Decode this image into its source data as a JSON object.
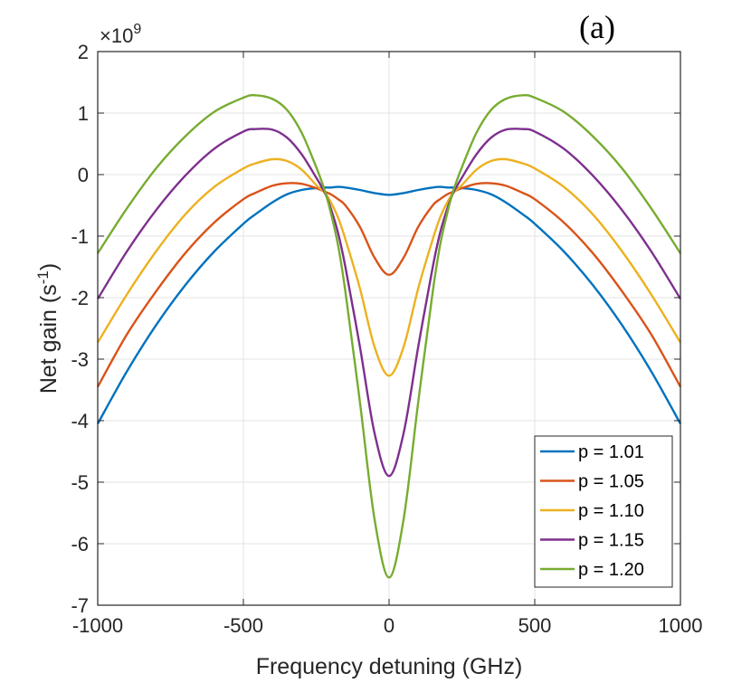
{
  "chart_data": {
    "type": "line",
    "panel_label": "(a)",
    "xlabel": "Frequency detuning (GHz)",
    "ylabel": "Net gain (s",
    "ylabel_sup": "-1",
    "ylabel_close": ")",
    "exponent_base": "×10",
    "exponent_power": "9",
    "xlim": [
      -1000,
      1000
    ],
    "ylim": [
      -7,
      2
    ],
    "xticks": [
      -1000,
      -500,
      0,
      500,
      1000
    ],
    "xtick_labels": [
      "-1000",
      "-500",
      "0",
      "500",
      "1000"
    ],
    "yticks": [
      -7,
      -6,
      -5,
      -4,
      -3,
      -2,
      -1,
      0,
      1,
      2
    ],
    "ytick_labels": [
      "-7",
      "-6",
      "-5",
      "-4",
      "-3",
      "-2",
      "-1",
      "0",
      "1",
      "2"
    ],
    "grid": true,
    "legend_position": "bottom-right",
    "x": [
      -1000,
      -900,
      -800,
      -700,
      -600,
      -500,
      -460,
      -400,
      -350,
      -300,
      -250,
      -220,
      -200,
      -175,
      -150,
      -100,
      -50,
      0,
      50,
      100,
      150,
      175,
      200,
      220,
      250,
      300,
      350,
      400,
      460,
      500,
      600,
      700,
      800,
      900,
      1000
    ],
    "series": [
      {
        "name": "p = 1.01",
        "color": "#0072BD",
        "values": [
          -4.05,
          -3.2,
          -2.45,
          -1.8,
          -1.25,
          -0.8,
          -0.65,
          -0.45,
          -0.32,
          -0.25,
          -0.22,
          -0.21,
          -0.21,
          -0.2,
          -0.21,
          -0.25,
          -0.3,
          -0.33,
          -0.3,
          -0.25,
          -0.21,
          -0.2,
          -0.21,
          -0.21,
          -0.22,
          -0.25,
          -0.32,
          -0.45,
          -0.65,
          -0.8,
          -1.25,
          -1.8,
          -2.45,
          -3.2,
          -4.05
        ]
      },
      {
        "name": "p = 1.05",
        "color": "#D95319",
        "values": [
          -3.45,
          -2.6,
          -1.9,
          -1.28,
          -0.78,
          -0.4,
          -0.3,
          -0.18,
          -0.14,
          -0.15,
          -0.22,
          -0.28,
          -0.32,
          -0.4,
          -0.5,
          -0.85,
          -1.35,
          -1.63,
          -1.35,
          -0.85,
          -0.5,
          -0.4,
          -0.32,
          -0.28,
          -0.22,
          -0.15,
          -0.14,
          -0.18,
          -0.3,
          -0.4,
          -0.78,
          -1.28,
          -1.9,
          -2.6,
          -3.45
        ]
      },
      {
        "name": "p = 1.10",
        "color": "#EDB120",
        "values": [
          -2.73,
          -1.95,
          -1.25,
          -0.65,
          -0.2,
          0.1,
          0.18,
          0.25,
          0.22,
          0.08,
          -0.17,
          -0.3,
          -0.45,
          -0.7,
          -1.05,
          -1.85,
          -2.8,
          -3.27,
          -2.8,
          -1.85,
          -1.05,
          -0.7,
          -0.45,
          -0.3,
          -0.17,
          0.08,
          0.22,
          0.25,
          0.18,
          0.1,
          -0.2,
          -0.65,
          -1.25,
          -1.95,
          -2.73
        ]
      },
      {
        "name": "p = 1.15",
        "color": "#7E2F8E",
        "values": [
          -2.02,
          -1.25,
          -0.58,
          -0.02,
          0.42,
          0.7,
          0.74,
          0.73,
          0.6,
          0.33,
          -0.05,
          -0.3,
          -0.55,
          -0.95,
          -1.5,
          -2.8,
          -4.2,
          -4.9,
          -4.2,
          -2.8,
          -1.5,
          -0.95,
          -0.55,
          -0.3,
          -0.05,
          0.33,
          0.6,
          0.73,
          0.74,
          0.7,
          0.42,
          -0.02,
          -0.58,
          -1.25,
          -2.02
        ]
      },
      {
        "name": "p = 1.20",
        "color": "#77AC30",
        "values": [
          -1.28,
          -0.55,
          0.1,
          0.62,
          1.02,
          1.25,
          1.29,
          1.23,
          1.05,
          0.68,
          0.12,
          -0.27,
          -0.62,
          -1.15,
          -1.9,
          -3.7,
          -5.6,
          -6.55,
          -5.6,
          -3.7,
          -1.9,
          -1.15,
          -0.62,
          -0.27,
          0.12,
          0.68,
          1.05,
          1.23,
          1.29,
          1.25,
          1.02,
          0.62,
          0.1,
          -0.55,
          -1.28
        ]
      }
    ]
  }
}
